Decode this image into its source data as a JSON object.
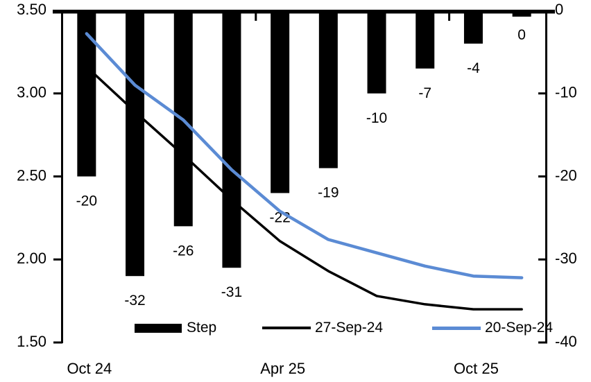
{
  "legend": {
    "items": [
      {
        "label": "Step",
        "type": "bar",
        "color": "#000000"
      },
      {
        "label": "27-Sep-24",
        "type": "line",
        "color": "#000000"
      },
      {
        "label": "20-Sep-24",
        "type": "line",
        "color": "#5B8BD4"
      }
    ]
  },
  "chart_data": {
    "type": "combo-bar-line",
    "categories": [
      "1",
      "2",
      "3",
      "4",
      "5",
      "6",
      "7",
      "8",
      "9",
      "10"
    ],
    "x_axis": {
      "tick_labels": [
        "Oct 24",
        "Apr 25",
        "Oct 25"
      ],
      "tick_label_category_index": [
        0,
        4,
        8
      ],
      "boundary_tick_category_index": [
        4,
        8
      ]
    },
    "left_axis": {
      "min": 1.5,
      "max": 3.5,
      "tick_labels": [
        "3.50",
        "3.00",
        "2.50",
        "2.00",
        "1.50"
      ],
      "tick_values": [
        3.5,
        3.0,
        2.5,
        2.0,
        1.5
      ]
    },
    "right_axis": {
      "min": -40,
      "max": 0,
      "tick_labels": [
        "0",
        "-10",
        "-20",
        "-30",
        "-40"
      ],
      "tick_values": [
        0,
        -10,
        -20,
        -30,
        -40
      ]
    },
    "bars": {
      "name": "Step",
      "axis": "right",
      "color": "#000000",
      "values": [
        -20,
        -32,
        -26,
        -31,
        -22,
        -19,
        -10,
        -7,
        -4,
        0
      ],
      "labels": [
        "-20",
        "-32",
        "-26",
        "-31",
        "-22",
        "-19",
        "-10",
        "-7",
        "-4",
        "0"
      ]
    },
    "series": [
      {
        "name": "27-Sep-24",
        "axis": "left",
        "color": "#000000",
        "width": 3.5,
        "values": [
          3.16,
          2.89,
          2.63,
          2.36,
          2.11,
          1.93,
          1.78,
          1.73,
          1.7,
          1.7
        ]
      },
      {
        "name": "20-Sep-24",
        "axis": "left",
        "color": "#5B8BD4",
        "width": 4.5,
        "values": [
          3.36,
          3.05,
          2.84,
          2.54,
          2.29,
          2.12,
          2.04,
          1.96,
          1.9,
          1.89
        ]
      }
    ],
    "grid": false,
    "legend_position": "bottom"
  }
}
